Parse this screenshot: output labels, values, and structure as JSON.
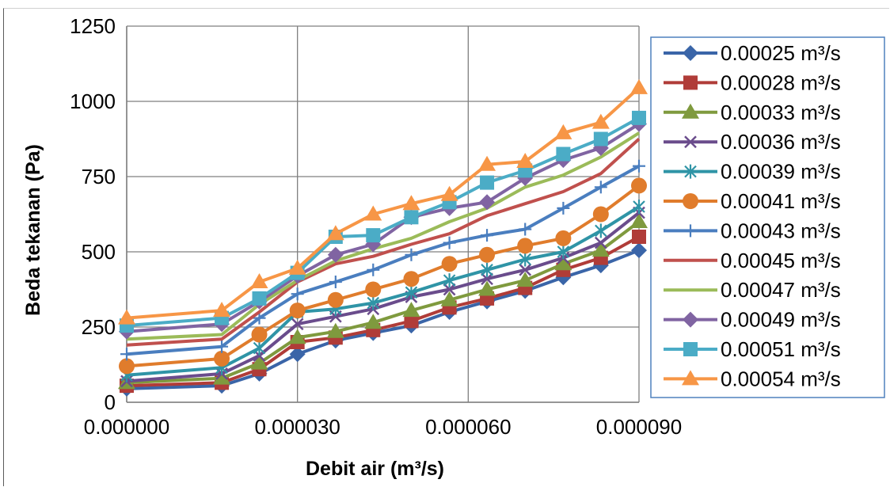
{
  "chart_data": {
    "type": "line",
    "xlabel": "Debit  air (m³/s)",
    "ylabel": "Beda tekanan  (Pa)",
    "xlim": [
      0,
      9e-05
    ],
    "ylim": [
      0,
      1250
    ],
    "x_ticks": [
      0,
      3e-05,
      6e-05,
      9e-05
    ],
    "x_tick_labels": [
      "0.000000",
      "0.000030",
      "0.000060",
      "0.000090"
    ],
    "y_ticks": [
      0,
      250,
      500,
      750,
      1000,
      1250
    ],
    "y_tick_labels": [
      "0",
      "250",
      "500",
      "750",
      "1000",
      "1250"
    ],
    "grid": true,
    "legend_position": "right",
    "x": [
      0,
      1.67e-05,
      2.33e-05,
      3e-05,
      3.67e-05,
      4.33e-05,
      5e-05,
      5.67e-05,
      6.33e-05,
      7e-05,
      7.67e-05,
      8.33e-05,
      9e-05
    ],
    "series": [
      {
        "name": "0.00025  m³/s",
        "color": "#3a65a8",
        "marker": "diamond",
        "values": [
          45,
          55,
          95,
          160,
          205,
          230,
          255,
          300,
          335,
          370,
          415,
          455,
          505
        ]
      },
      {
        "name": "0.00028  m³/s",
        "color": "#b03c38",
        "marker": "square",
        "values": [
          55,
          65,
          110,
          200,
          215,
          240,
          270,
          315,
          345,
          380,
          440,
          480,
          550
        ]
      },
      {
        "name": "0.00033  m³/s",
        "color": "#7f9a3e",
        "marker": "triangle",
        "values": [
          65,
          80,
          130,
          215,
          235,
          265,
          305,
          340,
          375,
          405,
          460,
          505,
          600
        ]
      },
      {
        "name": "0.00036  m³/s",
        "color": "#6a4c8c",
        "marker": "x",
        "values": [
          70,
          95,
          155,
          260,
          285,
          310,
          350,
          375,
          410,
          440,
          480,
          530,
          630
        ]
      },
      {
        "name": "0.00039  m³/s",
        "color": "#2f94a6",
        "marker": "star",
        "values": [
          90,
          115,
          180,
          300,
          310,
          330,
          365,
          405,
          440,
          475,
          500,
          570,
          650
        ]
      },
      {
        "name": "0.00041  m³/s",
        "color": "#e07c2c",
        "marker": "circle",
        "values": [
          120,
          145,
          225,
          305,
          340,
          375,
          410,
          460,
          490,
          520,
          545,
          625,
          720
        ]
      },
      {
        "name": "0.00043  m³/s",
        "color": "#4a7ebf",
        "marker": "plus",
        "values": [
          160,
          185,
          280,
          360,
          400,
          440,
          490,
          530,
          555,
          575,
          645,
          715,
          785
        ]
      },
      {
        "name": "0.00045  m³/s",
        "color": "#c0504d",
        "marker": "none",
        "values": [
          190,
          210,
          300,
          400,
          460,
          485,
          525,
          560,
          620,
          660,
          700,
          760,
          875
        ]
      },
      {
        "name": "0.00047  m³/s",
        "color": "#9bbb59",
        "marker": "none",
        "values": [
          210,
          225,
          325,
          405,
          470,
          510,
          545,
          600,
          645,
          715,
          755,
          815,
          895
        ]
      },
      {
        "name": "0.00049  m³/s",
        "color": "#8064a2",
        "marker": "diamond",
        "values": [
          235,
          260,
          335,
          420,
          490,
          525,
          615,
          645,
          665,
          745,
          805,
          845,
          925
        ]
      },
      {
        "name": "0.00051  m³/s",
        "color": "#4bacc6",
        "marker": "square",
        "values": [
          255,
          280,
          345,
          430,
          550,
          555,
          615,
          665,
          730,
          770,
          825,
          875,
          945
        ]
      },
      {
        "name": "0.00054  m³/s",
        "color": "#f79646",
        "marker": "triangle",
        "values": [
          280,
          305,
          400,
          445,
          560,
          625,
          660,
          690,
          790,
          800,
          895,
          930,
          1045
        ]
      }
    ]
  }
}
